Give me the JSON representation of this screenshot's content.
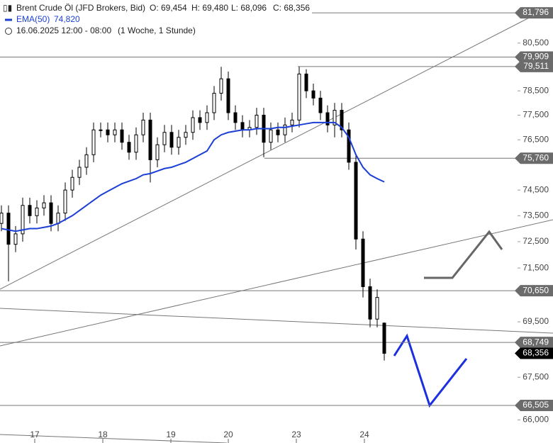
{
  "chart_data": {
    "type": "candlestick",
    "title": "Brent Crude Öl (JFD Brokers, Bid)",
    "ohlc_labels": [
      "O: 69,454",
      "H: 69,480",
      "L: 68,096",
      "C: 68,356"
    ],
    "period": "16.06.2025 12:00 - 08:00",
    "resolution": "(1 Woche, 1 Stunde)",
    "log_scale": true,
    "ylim": [
      65.2,
      82.35
    ],
    "xlim": [
      -0.2,
      72.8
    ],
    "yticks": [
      {
        "value": 66.0,
        "label": "66,000"
      },
      {
        "value": 67.5,
        "label": "67,500"
      },
      {
        "value": 69.5,
        "label": "69,500"
      },
      {
        "value": 71.5,
        "label": "71,500"
      },
      {
        "value": 72.5,
        "label": "72,500"
      },
      {
        "value": 73.5,
        "label": "73,500"
      },
      {
        "value": 74.5,
        "label": "74,500"
      },
      {
        "value": 76.5,
        "label": "76,500"
      },
      {
        "value": 77.5,
        "label": "77,500"
      },
      {
        "value": 78.5,
        "label": "78,500"
      },
      {
        "value": 80.5,
        "label": "80,500"
      }
    ],
    "xticks": [
      {
        "value": 4.7,
        "label": "17"
      },
      {
        "value": 14.3,
        "label": "18"
      },
      {
        "value": 23.9,
        "label": "19"
      },
      {
        "value": 32,
        "label": "20"
      },
      {
        "value": 41.6,
        "label": "23"
      },
      {
        "value": 51.2,
        "label": "24"
      }
    ],
    "candles": {
      "open": [
        73.2,
        73.6,
        72.4,
        72.8,
        73.9,
        73.5,
        73.8,
        74.0,
        73.2,
        73.6,
        74.5,
        75.0,
        75.4,
        75.9,
        76.9,
        76.9,
        76.7,
        76.9,
        76.4,
        76.0,
        76.7,
        77.3,
        75.7,
        76.3,
        76.8,
        76.2,
        76.6,
        76.8,
        77.4,
        77.2,
        77.6,
        78.4,
        79.0,
        77.6,
        77.2,
        76.9,
        77.0,
        77.5,
        76.4,
        76.9,
        76.7,
        77.1,
        77.3,
        79.2,
        78.5,
        78.2,
        77.6,
        77.1,
        77.7,
        76.9,
        75.6,
        72.6,
        70.8,
        69.6,
        69.454
      ],
      "high": [
        73.9,
        73.9,
        73.1,
        74.2,
        74.2,
        74.1,
        74.3,
        74.3,
        73.9,
        74.8,
        75.3,
        75.7,
        76.2,
        77.2,
        77.2,
        77.2,
        77.2,
        77.2,
        76.7,
        77.0,
        77.6,
        77.6,
        76.6,
        77.1,
        77.1,
        76.9,
        77.1,
        77.7,
        77.7,
        77.9,
        78.7,
        79.5,
        79.3,
        77.9,
        77.5,
        77.3,
        77.8,
        77.8,
        77.2,
        77.2,
        77.4,
        77.6,
        79.5,
        79.4,
        78.8,
        78.5,
        77.9,
        78.0,
        78.0,
        77.2,
        75.9,
        72.9,
        71.1,
        70.7,
        69.48
      ],
      "low": [
        72.9,
        71.0,
        72.1,
        72.5,
        73.2,
        73.2,
        73.5,
        72.9,
        72.9,
        73.3,
        74.2,
        74.7,
        75.1,
        75.6,
        76.6,
        76.4,
        76.4,
        76.1,
        75.7,
        75.7,
        76.4,
        74.8,
        75.4,
        76.0,
        75.9,
        75.9,
        76.3,
        76.5,
        76.9,
        76.9,
        77.3,
        78.1,
        77.3,
        76.9,
        76.6,
        76.6,
        76.7,
        75.8,
        76.1,
        76.4,
        76.4,
        76.8,
        77.0,
        78.2,
        77.9,
        77.3,
        76.8,
        76.6,
        76.6,
        75.3,
        72.2,
        70.4,
        69.3,
        69.3,
        68.096
      ],
      "close": [
        73.6,
        72.4,
        72.8,
        73.9,
        73.5,
        73.8,
        74.0,
        73.2,
        73.6,
        74.5,
        75.0,
        75.4,
        75.9,
        76.9,
        76.9,
        76.7,
        76.9,
        76.4,
        76.0,
        76.7,
        77.3,
        75.7,
        76.3,
        76.8,
        76.2,
        76.6,
        76.8,
        77.4,
        77.2,
        77.6,
        78.4,
        79.0,
        77.6,
        77.2,
        76.9,
        77.0,
        77.5,
        76.4,
        76.9,
        76.7,
        77.1,
        77.3,
        79.2,
        78.5,
        78.2,
        77.6,
        77.1,
        77.7,
        76.9,
        75.6,
        72.6,
        70.8,
        69.6,
        70.4,
        68.356
      ]
    },
    "series": [
      {
        "name": "EMA(50)",
        "color": "#1b3fd6",
        "value_label": "74,820",
        "values": [
          73.0,
          72.95,
          72.9,
          72.95,
          73.0,
          73.0,
          73.05,
          73.1,
          73.2,
          73.35,
          73.5,
          73.7,
          73.9,
          74.1,
          74.3,
          74.45,
          74.6,
          74.75,
          74.85,
          74.95,
          75.1,
          75.15,
          75.25,
          75.35,
          75.4,
          75.5,
          75.6,
          75.75,
          75.9,
          76.05,
          76.5,
          76.7,
          76.8,
          76.85,
          76.9,
          76.9,
          76.95,
          76.95,
          76.95,
          77.0,
          77.0,
          77.05,
          77.1,
          77.15,
          77.2,
          77.2,
          77.2,
          77.2,
          77.0,
          76.6,
          75.9,
          75.4,
          75.1,
          74.95,
          74.82
        ]
      }
    ],
    "levels": [
      {
        "value": 81.796,
        "label": "81,796"
      },
      {
        "value": 79.909,
        "label": "79,909"
      },
      {
        "value": 79.511,
        "label": "79,511"
      },
      {
        "value": 75.76,
        "label": "75,760"
      },
      {
        "value": 70.65,
        "label": "70,650"
      },
      {
        "value": 68.749,
        "label": "68,749"
      },
      {
        "value": 66.505,
        "label": "66,505"
      }
    ],
    "last_price": {
      "value": 68.356,
      "label": "68,356"
    }
  }
}
